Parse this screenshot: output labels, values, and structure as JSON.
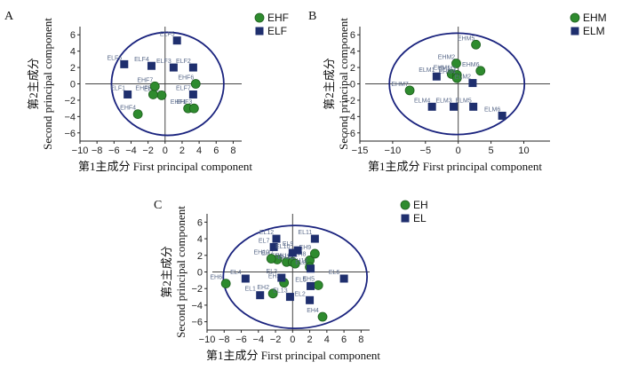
{
  "colors": {
    "green": "#2e8b2e",
    "navy": "#1f2f6e",
    "ellipse": "#1a237e"
  },
  "chart_data": [
    {
      "type": "scatter",
      "panel": "A",
      "xlabel": "第1主成分  First principal component",
      "ylabel": "第2主成分 Second principal component",
      "xlim": [
        -10,
        9
      ],
      "ylim": [
        -7,
        7
      ],
      "xticks": [
        -10,
        -8,
        -6,
        -4,
        -2,
        0,
        2,
        4,
        6,
        8
      ],
      "yticks": [
        -6,
        -4,
        -2,
        0,
        2,
        4,
        6
      ],
      "ellipse": {
        "cx": 0.3,
        "cy": 0,
        "rx": 6.6,
        "ry": 6.3
      },
      "legend": [
        {
          "name": "EHF",
          "marker": "circle"
        },
        {
          "name": "ELF",
          "marker": "square"
        }
      ],
      "series": [
        {
          "name": "EHF",
          "marker": "circle",
          "points": [
            {
              "label": "EHF1",
              "x": 2.7,
              "y": -3.0
            },
            {
              "label": "EHF2",
              "x": -0.4,
              "y": -1.4
            },
            {
              "label": "EHF3",
              "x": 3.4,
              "y": -3.0
            },
            {
              "label": "EHF4",
              "x": -3.2,
              "y": -3.7
            },
            {
              "label": "EHF5",
              "x": -1.4,
              "y": -1.3
            },
            {
              "label": "EHF6",
              "x": 3.6,
              "y": 0.0
            },
            {
              "label": "EHF7",
              "x": -1.2,
              "y": -0.3
            }
          ]
        },
        {
          "name": "ELF",
          "marker": "square",
          "points": [
            {
              "label": "ELF1",
              "x": -4.4,
              "y": -1.3
            },
            {
              "label": "ELF2",
              "x": 3.3,
              "y": 2.0
            },
            {
              "label": "ELF3",
              "x": 1.0,
              "y": 2.0
            },
            {
              "label": "ELF4",
              "x": -1.6,
              "y": 2.2
            },
            {
              "label": "ELF5",
              "x": 1.4,
              "y": 5.3
            },
            {
              "label": "ELF6",
              "x": -4.8,
              "y": 2.4
            },
            {
              "label": "ELF7",
              "x": 3.3,
              "y": -1.3
            }
          ]
        }
      ]
    },
    {
      "type": "scatter",
      "panel": "B",
      "xlabel": "第1主成分  First principal component",
      "ylabel": "第2主成分 Second principal component",
      "xlim": [
        -15,
        14
      ],
      "ylim": [
        -7,
        7
      ],
      "xticks": [
        -15,
        -10,
        -5,
        0,
        5,
        10
      ],
      "yticks": [
        -6,
        -4,
        -2,
        0,
        2,
        4,
        6
      ],
      "ellipse": {
        "cx": -0.2,
        "cy": 0,
        "rx": 10.3,
        "ry": 6.2
      },
      "legend": [
        {
          "name": "EHM",
          "marker": "circle"
        },
        {
          "name": "ELM",
          "marker": "square"
        }
      ],
      "series": [
        {
          "name": "EHM",
          "marker": "circle",
          "points": [
            {
              "label": "EHM1",
              "x": -1.0,
              "y": 1.2
            },
            {
              "label": "EHM2",
              "x": -0.3,
              "y": 2.5
            },
            {
              "label": "EHM3",
              "x": -0.2,
              "y": 1.1
            },
            {
              "label": "EHM4",
              "x": -0.2,
              "y": 0.7
            },
            {
              "label": "EHM5",
              "x": 2.7,
              "y": 4.8
            },
            {
              "label": "EHM6",
              "x": 3.4,
              "y": 1.6
            },
            {
              "label": "EHM7",
              "x": -7.4,
              "y": -0.8
            }
          ]
        },
        {
          "name": "ELM",
          "marker": "square",
          "points": [
            {
              "label": "ELM1",
              "x": -3.3,
              "y": 0.9
            },
            {
              "label": "ELM2",
              "x": 2.2,
              "y": 0.1
            },
            {
              "label": "ELM3",
              "x": -0.7,
              "y": -2.8
            },
            {
              "label": "ELM4",
              "x": -4.0,
              "y": -2.8
            },
            {
              "label": "ELM5",
              "x": 2.3,
              "y": -2.8
            },
            {
              "label": "ELM6",
              "x": 6.7,
              "y": -3.9
            }
          ]
        }
      ]
    },
    {
      "type": "scatter",
      "panel": "C",
      "xlabel": "第1主成分  First principal component",
      "ylabel": "第2主成分 Second principal component",
      "xlim": [
        -10,
        9
      ],
      "ylim": [
        -7,
        7
      ],
      "xticks": [
        -10,
        -8,
        -6,
        -4,
        -2,
        0,
        2,
        4,
        6,
        8
      ],
      "yticks": [
        -6,
        -4,
        -2,
        0,
        2,
        4,
        6
      ],
      "ellipse": {
        "cx": 0.3,
        "cy": -0.6,
        "rx": 8.4,
        "ry": 6.2
      },
      "legend": [
        {
          "name": "EH",
          "marker": "circle"
        },
        {
          "name": "EL",
          "marker": "square"
        }
      ],
      "series": [
        {
          "name": "EH",
          "marker": "circle",
          "points": [
            {
              "label": "EH1",
              "x": -0.7,
              "y": 1.2
            },
            {
              "label": "EH2",
              "x": -2.3,
              "y": -2.6
            },
            {
              "label": "EH3",
              "x": -1.0,
              "y": -1.3
            },
            {
              "label": "EH4",
              "x": 3.5,
              "y": -5.4
            },
            {
              "label": "EH5",
              "x": 3.0,
              "y": -1.6
            },
            {
              "label": "EH6",
              "x": -7.8,
              "y": -1.4
            },
            {
              "label": "EH7",
              "x": -1.8,
              "y": 1.5
            },
            {
              "label": "EH8",
              "x": 2.0,
              "y": 1.4
            },
            {
              "label": "EH9",
              "x": 2.6,
              "y": 2.2
            },
            {
              "label": "EH10",
              "x": -2.5,
              "y": 1.6
            },
            {
              "label": "EH11",
              "x": 0.0,
              "y": 1.2
            },
            {
              "label": "EH12",
              "x": 2.0,
              "y": 0.6
            },
            {
              "label": "EH13",
              "x": 0.3,
              "y": 1.0
            }
          ]
        },
        {
          "name": "EL",
          "marker": "square",
          "points": [
            {
              "label": "EL1",
              "x": -3.8,
              "y": -2.8
            },
            {
              "label": "EL2",
              "x": 2.0,
              "y": -3.4
            },
            {
              "label": "EL3",
              "x": -1.3,
              "y": -0.7
            },
            {
              "label": "EL4",
              "x": -5.5,
              "y": -0.8
            },
            {
              "label": "EL5",
              "x": 2.1,
              "y": -1.7
            },
            {
              "label": "EL6",
              "x": 6.0,
              "y": -0.8
            },
            {
              "label": "EL7",
              "x": -2.2,
              "y": 3.0
            },
            {
              "label": "EL8",
              "x": 2.1,
              "y": 0.4
            },
            {
              "label": "EL9",
              "x": 0.6,
              "y": 2.6
            },
            {
              "label": "EL10",
              "x": 0.0,
              "y": 2.3
            },
            {
              "label": "EL11",
              "x": 2.6,
              "y": 4.0
            },
            {
              "label": "EL12",
              "x": -1.9,
              "y": 4.0
            },
            {
              "label": "EL13",
              "x": -0.3,
              "y": -3.0
            }
          ]
        }
      ]
    }
  ]
}
